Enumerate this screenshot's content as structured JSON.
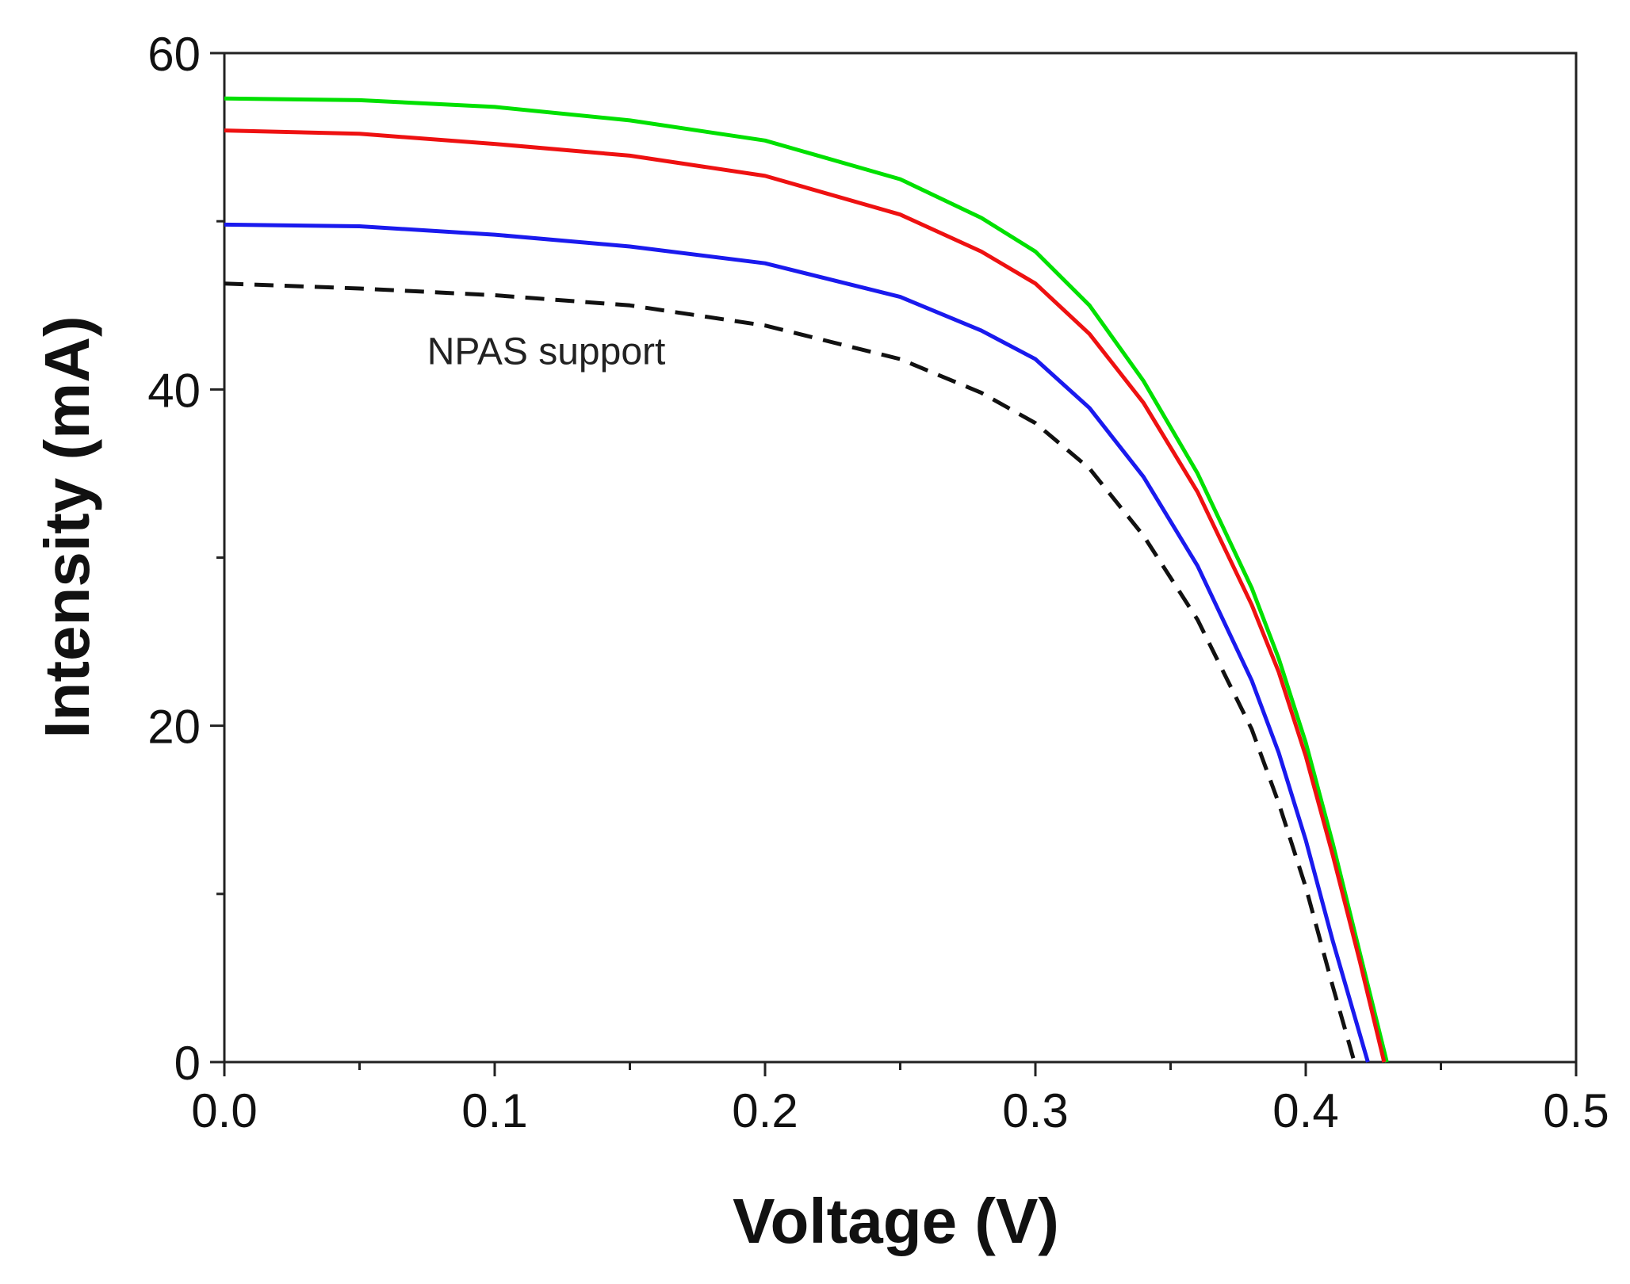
{
  "chart_data": {
    "type": "line",
    "title": "",
    "xlabel": "Voltage (V)",
    "ylabel": "Intensity (mA)",
    "xlim": [
      0,
      0.5
    ],
    "ylim": [
      0,
      60
    ],
    "x_ticks": [
      0.0,
      0.1,
      0.2,
      0.3,
      0.4,
      0.5
    ],
    "x_tick_labels": [
      "0.0",
      "0.1",
      "0.2",
      "0.3",
      "0.4",
      "0.5"
    ],
    "y_ticks": [
      0,
      20,
      40,
      60
    ],
    "y_tick_labels": [
      "0",
      "20",
      "40",
      "60"
    ],
    "x_minor_step": 0.05,
    "y_minor_step": 10,
    "grid": false,
    "annotations": [
      {
        "text": "NPAS support",
        "x": 0.075,
        "y": 41.5
      }
    ],
    "series": [
      {
        "name": "green",
        "color": "#00e000",
        "dash": "solid",
        "x": [
          0,
          0.05,
          0.1,
          0.15,
          0.2,
          0.25,
          0.28,
          0.3,
          0.32,
          0.34,
          0.36,
          0.38,
          0.39,
          0.4,
          0.41,
          0.42,
          0.43
        ],
        "y": [
          57.3,
          57.2,
          56.8,
          56.0,
          54.8,
          52.5,
          50.2,
          48.2,
          45.0,
          40.5,
          35.0,
          28.2,
          24.0,
          19.0,
          13.0,
          6.5,
          0
        ]
      },
      {
        "name": "red",
        "color": "#ee1111",
        "dash": "solid",
        "x": [
          0,
          0.05,
          0.1,
          0.15,
          0.2,
          0.25,
          0.28,
          0.3,
          0.32,
          0.34,
          0.36,
          0.38,
          0.39,
          0.4,
          0.41,
          0.42,
          0.429
        ],
        "y": [
          55.4,
          55.2,
          54.6,
          53.9,
          52.7,
          50.4,
          48.2,
          46.3,
          43.3,
          39.2,
          33.9,
          27.2,
          23.2,
          18.2,
          12.3,
          6.0,
          0
        ]
      },
      {
        "name": "blue",
        "color": "#1a1aee",
        "dash": "solid",
        "x": [
          0,
          0.05,
          0.1,
          0.15,
          0.2,
          0.25,
          0.28,
          0.3,
          0.32,
          0.34,
          0.36,
          0.38,
          0.39,
          0.4,
          0.41,
          0.423
        ],
        "y": [
          49.8,
          49.7,
          49.2,
          48.5,
          47.5,
          45.5,
          43.5,
          41.8,
          38.9,
          34.8,
          29.5,
          22.7,
          18.4,
          13.2,
          7.2,
          0
        ]
      },
      {
        "name": "NPAS support",
        "color": "#111111",
        "dash": "dashed",
        "x": [
          0,
          0.05,
          0.1,
          0.15,
          0.2,
          0.25,
          0.28,
          0.3,
          0.32,
          0.34,
          0.36,
          0.38,
          0.39,
          0.4,
          0.41,
          0.418
        ],
        "y": [
          46.3,
          46.0,
          45.6,
          45.0,
          43.8,
          41.8,
          39.8,
          38.0,
          35.3,
          31.3,
          26.3,
          19.8,
          15.4,
          10.4,
          4.5,
          0
        ]
      }
    ]
  }
}
